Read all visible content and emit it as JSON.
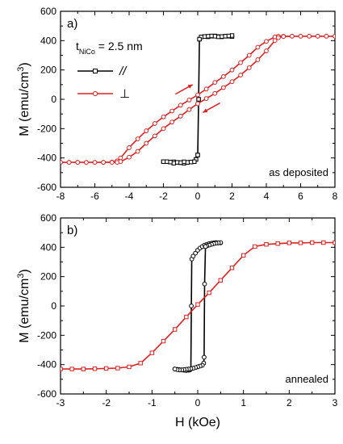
{
  "chart_data": [
    {
      "type": "line",
      "panel_label": "a)",
      "annotation": "as deposited",
      "thickness_label_prefix": "t",
      "thickness_label_sub": "NiCo",
      "thickness_label_value": " = 2.5 nm",
      "xlim": [
        -8,
        8
      ],
      "ylim": [
        -600,
        600
      ],
      "xticks": [
        "-8",
        "-6",
        "-4",
        "-2",
        "0",
        "2",
        "4",
        "6",
        "8"
      ],
      "yticks": [
        "-600",
        "-400",
        "-200",
        "0",
        "200",
        "400",
        "600"
      ],
      "ylabel": "M (emu/cm",
      "ylabel_sup": "3",
      "ylabel_end": ")",
      "series": [
        {
          "name": "//",
          "color": "#000000",
          "marker": "square",
          "x": [
            -2.0,
            -1.8,
            -1.6,
            -1.4,
            -1.2,
            -1.0,
            -0.8,
            -0.6,
            -0.4,
            -0.2,
            -0.1,
            0.0,
            0.05,
            0.1,
            0.2,
            0.4,
            0.6,
            0.8,
            1.0,
            1.2,
            1.4,
            1.6,
            1.8,
            2.0,
            2.0,
            1.8,
            1.6,
            1.4,
            1.2,
            1.0,
            0.8,
            0.6,
            0.4,
            0.2,
            0.1,
            0.05,
            0.0,
            -0.1,
            -0.2,
            -0.4,
            -0.6,
            -0.8,
            -1.0,
            -1.2,
            -1.4,
            -1.6,
            -1.8,
            -2.0
          ],
          "y": [
            -425,
            -425,
            -428,
            -426,
            -430,
            -432,
            -436,
            -430,
            -428,
            -425,
            -410,
            -380,
            0,
            410,
            425,
            428,
            426,
            430,
            432,
            428,
            426,
            430,
            430,
            428,
            435,
            432,
            430,
            428,
            426,
            430,
            432,
            430,
            428,
            425,
            410,
            0,
            -380,
            -410,
            -425,
            -428,
            -430,
            -426,
            -432,
            -430,
            -436,
            -428,
            -425,
            -425
          ]
        },
        {
          "name": "⊥",
          "color": "#e02020",
          "marker": "circle",
          "x": [
            -8.0,
            -7.5,
            -7.0,
            -6.5,
            -6.0,
            -5.5,
            -5.0,
            -4.7,
            -4.5,
            -4.0,
            -3.5,
            -3.0,
            -2.5,
            -2.0,
            -1.5,
            -1.0,
            -0.5,
            0.0,
            0.5,
            1.0,
            1.5,
            2.0,
            2.5,
            3.0,
            3.5,
            4.0,
            4.5,
            4.7,
            5.0,
            5.5,
            6.0,
            6.5,
            7.0,
            7.5,
            8.0,
            8.0,
            7.5,
            7.0,
            6.5,
            6.0,
            5.5,
            5.0,
            4.7,
            4.5,
            4.0,
            3.5,
            3.0,
            2.5,
            2.0,
            1.5,
            1.0,
            0.5,
            0.0,
            -0.5,
            -1.0,
            -1.5,
            -2.0,
            -2.5,
            -3.0,
            -3.5,
            -4.0,
            -4.5,
            -4.7,
            -5.0,
            -5.5,
            -6.0,
            -6.5,
            -7.0,
            -7.5,
            -8.0
          ],
          "y": [
            -430,
            -430,
            -430,
            -430,
            -430,
            -430,
            -428,
            -420,
            -400,
            -330,
            -270,
            -215,
            -165,
            -120,
            -80,
            -40,
            -5,
            30,
            70,
            115,
            155,
            200,
            250,
            300,
            355,
            395,
            425,
            430,
            430,
            430,
            430,
            430,
            430,
            430,
            430,
            430,
            430,
            430,
            430,
            430,
            430,
            428,
            420,
            400,
            330,
            270,
            215,
            165,
            120,
            80,
            40,
            5,
            -30,
            -70,
            -115,
            -155,
            -200,
            -250,
            -300,
            -355,
            -395,
            -425,
            -430,
            -430,
            -430,
            -430,
            -430,
            -430,
            -430,
            -430
          ]
        }
      ]
    },
    {
      "type": "line",
      "panel_label": "b)",
      "annotation": "annealed",
      "xlim": [
        -3,
        3
      ],
      "ylim": [
        -600,
        600
      ],
      "xticks": [
        "-3",
        "-2",
        "-1",
        "0",
        "1",
        "2",
        "3"
      ],
      "yticks": [
        "-600",
        "-400",
        "-200",
        "0",
        "200",
        "400",
        "600"
      ],
      "xlabel": "H (kOe)",
      "ylabel": "M (emu/cm",
      "ylabel_sup": "3",
      "ylabel_end": ")",
      "series": [
        {
          "name": "//",
          "color": "#000000",
          "marker": "circle",
          "x": [
            -0.5,
            -0.45,
            -0.4,
            -0.35,
            -0.3,
            -0.25,
            -0.2,
            -0.17,
            -0.15,
            -0.14,
            -0.13,
            -0.1,
            -0.05,
            0.0,
            0.05,
            0.1,
            0.15,
            0.2,
            0.25,
            0.3,
            0.35,
            0.4,
            0.45,
            0.5,
            0.5,
            0.45,
            0.4,
            0.35,
            0.3,
            0.25,
            0.2,
            0.17,
            0.15,
            0.14,
            0.13,
            0.1,
            0.05,
            0.0,
            -0.05,
            -0.1,
            -0.15,
            -0.2,
            -0.25,
            -0.3,
            -0.35,
            -0.4,
            -0.45,
            -0.5
          ],
          "y": [
            -430,
            -432,
            -434,
            -436,
            -438,
            -440,
            -438,
            -436,
            -430,
            0,
            320,
            340,
            360,
            380,
            395,
            405,
            415,
            420,
            425,
            428,
            430,
            432,
            430,
            430,
            432,
            430,
            428,
            425,
            420,
            415,
            410,
            405,
            150,
            -350,
            -390,
            -405,
            -410,
            -415,
            -420,
            -425,
            -428,
            -430,
            -432,
            -434,
            -436,
            -436,
            -434,
            -430
          ]
        },
        {
          "name": "⊥",
          "color": "#e02020",
          "marker": "square",
          "x": [
            -3.0,
            -2.75,
            -2.5,
            -2.25,
            -2.0,
            -1.75,
            -1.5,
            -1.25,
            -1.0,
            -0.75,
            -0.5,
            -0.25,
            0.0,
            0.25,
            0.5,
            0.75,
            1.0,
            1.25,
            1.5,
            1.75,
            2.0,
            2.25,
            2.5,
            2.75,
            3.0
          ],
          "y": [
            -430,
            -430,
            -430,
            -428,
            -426,
            -424,
            -415,
            -390,
            -320,
            -240,
            -160,
            -75,
            10,
            90,
            175,
            260,
            345,
            405,
            420,
            425,
            430,
            430,
            432,
            432,
            432
          ]
        }
      ]
    }
  ],
  "legend": {
    "items": [
      {
        "label": "//",
        "color": "#000000",
        "marker": "square"
      },
      {
        "label": "⊥",
        "color": "#e02020",
        "marker": "circle"
      }
    ]
  }
}
